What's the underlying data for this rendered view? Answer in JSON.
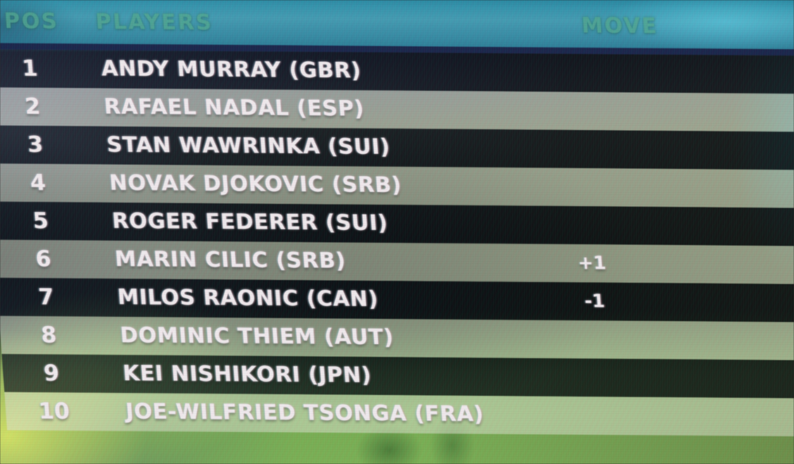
{
  "header": {
    "pos_label": "POS",
    "players_label": "PLAYERS",
    "move_label": "MOVE"
  },
  "rows": [
    {
      "pos": "1",
      "player": "ANDY MURRAY (GBR)",
      "move": ""
    },
    {
      "pos": "2",
      "player": "RAFAEL NADAL (ESP)",
      "move": ""
    },
    {
      "pos": "3",
      "player": "STAN WAWRINKA (SUI)",
      "move": ""
    },
    {
      "pos": "4",
      "player": "NOVAK DJOKOVIC (SRB)",
      "move": ""
    },
    {
      "pos": "5",
      "player": "ROGER FEDERER (SUI)",
      "move": ""
    },
    {
      "pos": "6",
      "player": "MARIN CILIC (SRB)",
      "move": "+1"
    },
    {
      "pos": "7",
      "player": "MILOS RAONIC (CAN)",
      "move": "-1"
    },
    {
      "pos": "8",
      "player": "DOMINIC THIEM (AUT)",
      "move": ""
    },
    {
      "pos": "9",
      "player": "KEI NISHIKORI (JPN)",
      "move": ""
    },
    {
      "pos": "10",
      "player": "JOE-WILFRIED TSONGA (FRA)",
      "move": ""
    }
  ],
  "colors": {
    "header_teal": "#3598b2",
    "header_text_green": "#4aa98e",
    "separator_navy": "#16234c",
    "row_text": "#f4edf0",
    "grass_green": "#76b14c",
    "bright_corner_green": "#cde25c"
  },
  "chart_data": {
    "type": "table",
    "columns": [
      "POS",
      "PLAYERS",
      "MOVE"
    ],
    "rows": [
      [
        "1",
        "ANDY MURRAY (GBR)",
        ""
      ],
      [
        "2",
        "RAFAEL NADAL (ESP)",
        ""
      ],
      [
        "3",
        "STAN WAWRINKA (SUI)",
        ""
      ],
      [
        "4",
        "NOVAK DJOKOVIC (SRB)",
        ""
      ],
      [
        "5",
        "ROGER FEDERER (SUI)",
        ""
      ],
      [
        "6",
        "MARIN CILIC (SRB)",
        "+1"
      ],
      [
        "7",
        "MILOS RAONIC (CAN)",
        "-1"
      ],
      [
        "8",
        "DOMINIC THIEM (AUT)",
        ""
      ],
      [
        "9",
        "KEI NISHIKORI (JPN)",
        ""
      ],
      [
        "10",
        "JOE-WILFRIED TSONGA (FRA)",
        ""
      ]
    ]
  }
}
